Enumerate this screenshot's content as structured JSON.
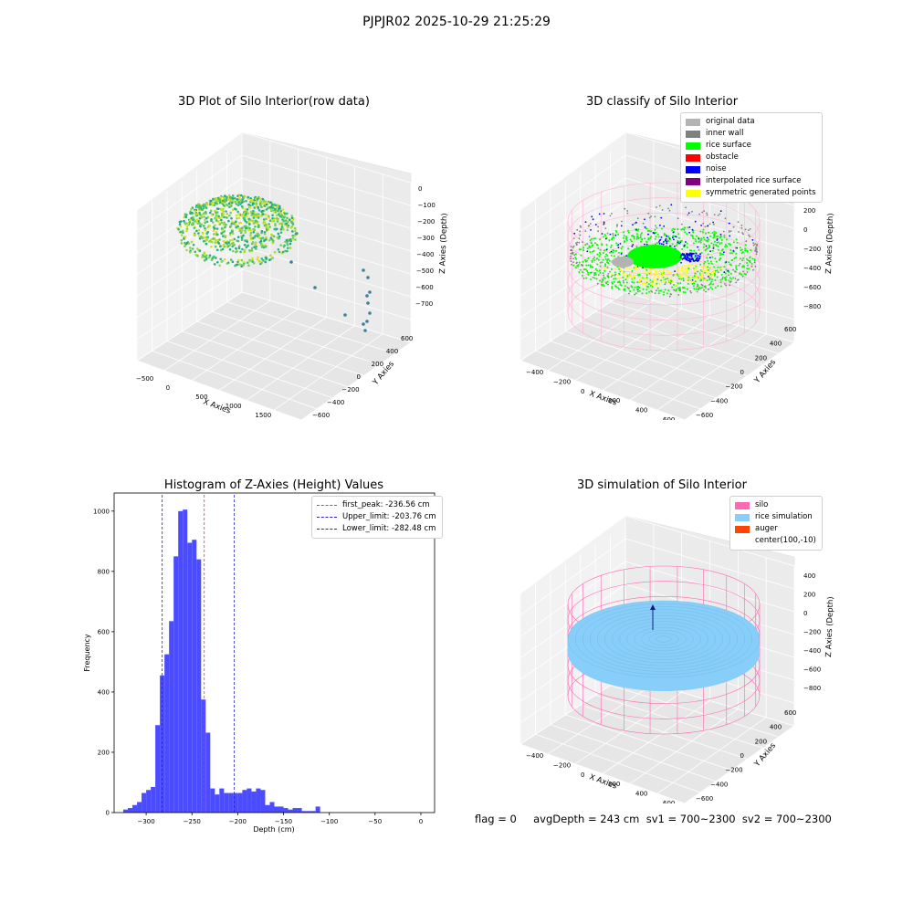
{
  "suptitle": "PJPJR02 2025-10-29 21:25:29",
  "footer": "flag = 0     avgDepth = 243 cm  sv1 = 700~2300  sv2 = 700~2300",
  "colors": {
    "hist_bar": "#4b4bff",
    "peak_line": "#ff3030",
    "limit_line": "#2020d0",
    "original": "#b3b3b3",
    "inner_wall": "#808080",
    "rice_surface": "#00ff00",
    "obstacle": "#ff0000",
    "noise": "#0000ff",
    "interpolated": "#800080",
    "symmetric": "#ffff00",
    "silo": "#ff69b4",
    "rice_sim": "#87cefa",
    "auger": "#ff4500"
  },
  "chart_data": [
    {
      "type": "scatter",
      "title": "3D Plot of Silo Interior(row data)",
      "xlabel": "X Axies",
      "ylabel": "Y Axies",
      "zlabel": "Z Axies (Depth)",
      "x_ticks": [
        "−500",
        "0",
        "500",
        "1000",
        "1500",
        "2000"
      ],
      "y_ticks": [
        "−600",
        "−400",
        "−200",
        "0",
        "200",
        "400",
        "600"
      ],
      "z_ticks": [
        "0",
        "−100",
        "−200",
        "−300",
        "−400",
        "−500",
        "−600",
        "−700"
      ]
    },
    {
      "type": "scatter",
      "title": "3D classify of Silo Interior",
      "xlabel": "X Axies",
      "ylabel": "Y Axies",
      "zlabel": "Z Axies (Depth)",
      "x_ticks": [
        "−400",
        "−200",
        "0",
        "200",
        "400",
        "600"
      ],
      "y_ticks": [
        "−600",
        "−400",
        "−200",
        "0",
        "200",
        "400",
        "600"
      ],
      "z_ticks": [
        "200",
        "0",
        "−200",
        "−400",
        "−600",
        "−800"
      ],
      "z_ticks_top": [
        "300",
        "200",
        "0"
      ],
      "legend": [
        {
          "label": "original data",
          "color": "#b3b3b3"
        },
        {
          "label": "inner wall",
          "color": "#808080"
        },
        {
          "label": "rice surface",
          "color": "#00ff00"
        },
        {
          "label": "obstacle",
          "color": "#ff0000"
        },
        {
          "label": "noise",
          "color": "#0000ff"
        },
        {
          "label": "interpolated rice surface",
          "color": "#800080"
        },
        {
          "label": "symmetric generated points",
          "color": "#ffff00"
        }
      ]
    },
    {
      "type": "bar",
      "title": "Histogram of Z-Axies (Height) Values",
      "xlabel": "Depth (cm)",
      "ylabel": "Frequency",
      "xlim": [
        -335,
        15
      ],
      "ylim": [
        0,
        1060
      ],
      "bin_start": -325,
      "bin_width": 5,
      "values": [
        10,
        15,
        25,
        35,
        65,
        75,
        85,
        290,
        455,
        525,
        635,
        850,
        1000,
        1005,
        895,
        905,
        840,
        375,
        265,
        80,
        60,
        80,
        65,
        65,
        65,
        65,
        75,
        80,
        70,
        80,
        75,
        25,
        35,
        20,
        20,
        15,
        10,
        15,
        15,
        5,
        5,
        5,
        20
      ],
      "x_ticks": [
        -300,
        -250,
        -200,
        -150,
        -100,
        -50,
        0
      ],
      "y_ticks": [
        0,
        200,
        400,
        600,
        800,
        1000
      ],
      "lines": [
        {
          "label": "first_peak: -236.56 cm",
          "x": -236.56,
          "color": "#ff3030"
        },
        {
          "label": "Upper_limit: -203.76 cm",
          "x": -203.76,
          "color": "#2020d0"
        },
        {
          "label": "Lower_limit: -282.48 cm",
          "x": -282.48,
          "color": "#2020d0"
        }
      ]
    },
    {
      "type": "scatter",
      "title": "3D simulation of Silo Interior",
      "xlabel": "X Axies",
      "ylabel": "Y Axies",
      "zlabel": "Z Axies (Depth)",
      "x_ticks": [
        "−400",
        "−200",
        "0",
        "200",
        "400",
        "600"
      ],
      "y_ticks": [
        "−600",
        "−400",
        "−200",
        "0",
        "200",
        "400",
        "600"
      ],
      "z_ticks": [
        "400",
        "200",
        "0",
        "−200",
        "−400",
        "−600",
        "−800"
      ],
      "legend": [
        {
          "label": "silo",
          "color": "#ff69b4"
        },
        {
          "label": "rice simulation",
          "color": "#87cefa"
        },
        {
          "label": "auger",
          "color": "#ff4500"
        },
        {
          "label": "center(100,-10)",
          "color": ""
        }
      ]
    }
  ]
}
